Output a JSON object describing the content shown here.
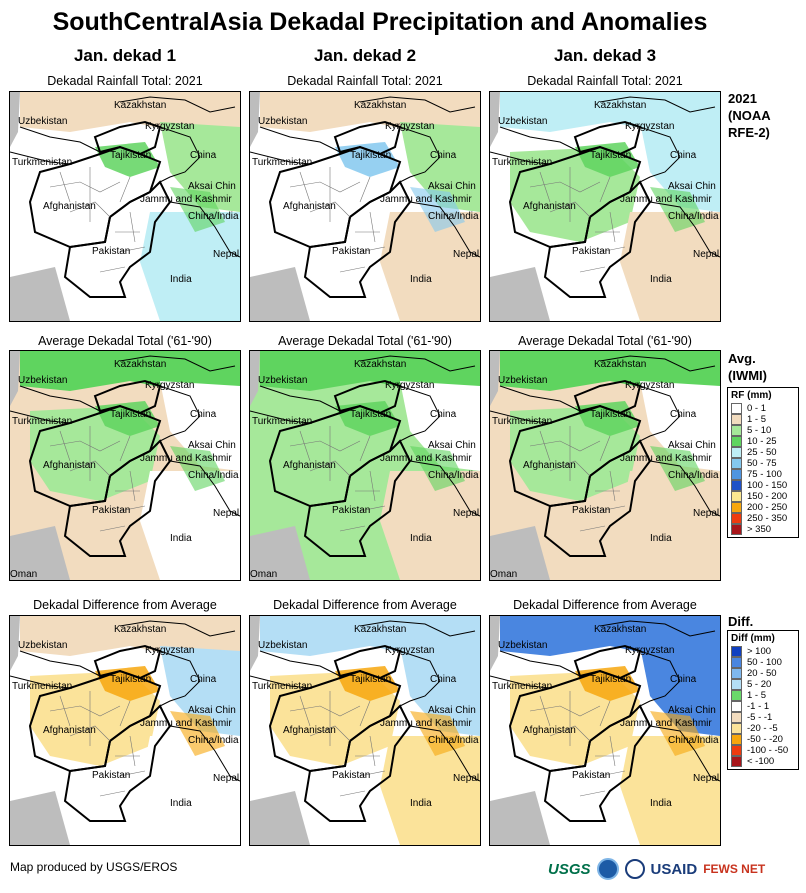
{
  "title": "SouthCentralAsia Dekadal Precipitation and Anomalies",
  "columns": [
    "Jan. dekad 1",
    "Jan. dekad 2",
    "Jan. dekad 3"
  ],
  "row_titles": {
    "total": "Dekadal Rainfall Total: 2021",
    "avg": "Average Dekadal Total ('61-'90)",
    "diff": "Dekadal Difference from Average"
  },
  "side_labels": {
    "total": [
      "2021",
      "(NOAA",
      "RFE-2)"
    ],
    "avg": [
      "Avg.",
      "(IWMI)"
    ],
    "diff": [
      "Diff."
    ]
  },
  "rf_legend": {
    "title": "RF (mm)",
    "items": [
      {
        "label": "0 - 1",
        "color": "#ffffff"
      },
      {
        "label": "1 - 5",
        "color": "#f2dcbf"
      },
      {
        "label": "5 - 10",
        "color": "#a6e89a"
      },
      {
        "label": "10 - 25",
        "color": "#5fd45f"
      },
      {
        "label": "25 - 50",
        "color": "#bfeef5"
      },
      {
        "label": "50 - 75",
        "color": "#84c8ee"
      },
      {
        "label": "75 - 100",
        "color": "#4f95e0"
      },
      {
        "label": "100 - 150",
        "color": "#2052c8"
      },
      {
        "label": "150 - 200",
        "color": "#fce890"
      },
      {
        "label": "200 - 250",
        "color": "#f7a70e"
      },
      {
        "label": "250 - 350",
        "color": "#ef3b0f"
      },
      {
        "label": "> 350",
        "color": "#a8151a"
      }
    ]
  },
  "diff_legend": {
    "title": "Diff (mm)",
    "items": [
      {
        "label": "> 100",
        "color": "#1040c0"
      },
      {
        "label": "50 - 100",
        "color": "#4a86e0"
      },
      {
        "label": "20 - 50",
        "color": "#7fb8ee"
      },
      {
        "label": "5 - 20",
        "color": "#b4def5"
      },
      {
        "label": "1 - 5",
        "color": "#6ad86a"
      },
      {
        "label": "-1 - 1",
        "color": "#ffffff"
      },
      {
        "label": "-5 - -1",
        "color": "#f2dcbf"
      },
      {
        "label": "-20 - -5",
        "color": "#fbe39a"
      },
      {
        "label": "-50 - -20",
        "color": "#f7a70e"
      },
      {
        "label": "-100 - -50",
        "color": "#ef3b0f"
      },
      {
        "label": "< -100",
        "color": "#a8151a"
      }
    ]
  },
  "place_labels": {
    "kazakhstan": "Kazakhstan",
    "uzbekistan": "Uzbekistan",
    "kyrgyzstan": "Kyrgyzstan",
    "turkmenistan": "Turkmenistan",
    "tajikistan": "Tajikistan",
    "china": "China",
    "aksai_chin": "Aksai Chin",
    "jammu": "Jammu and Kashmir",
    "china_india": "China/India",
    "afghanistan": "Afghanistan",
    "pakistan": "Pakistan",
    "nepal": "Nepal",
    "india": "India",
    "oman": "Oman"
  },
  "footer": "Map produced by USGS/EROS",
  "logos": {
    "usgs": "USGS",
    "usaid": "USAID",
    "fews": "FEWS NET"
  }
}
